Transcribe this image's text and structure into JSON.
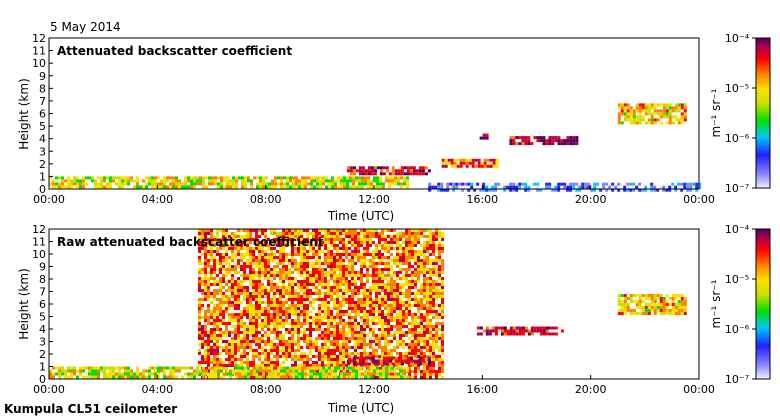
{
  "figure": {
    "date": "5 May 2014",
    "footer": "Kumpula CL51 ceilometer"
  },
  "colorbar": {
    "unit": "m⁻¹ sr⁻¹",
    "tick_labels": [
      "10⁻⁴",
      "10⁻⁵",
      "10⁻⁶",
      "10⁻⁷"
    ],
    "colors": [
      "#f0f0ff",
      "#8080ff",
      "#2020ff",
      "#00c8ff",
      "#00e000",
      "#c8e000",
      "#ffe000",
      "#ff8000",
      "#ff0000",
      "#b00050",
      "#500060"
    ]
  },
  "chart_data": [
    {
      "type": "heatmap",
      "title": "Attenuated backscatter coefficient",
      "xlabel": "Time (UTC)",
      "ylabel": "Height (km)",
      "x_ticks": [
        "00:00",
        "04:00",
        "08:00",
        "12:00",
        "16:00",
        "20:00",
        "00:00"
      ],
      "y_ticks": [
        0,
        1,
        2,
        3,
        4,
        5,
        6,
        7,
        8,
        9,
        10,
        11,
        12
      ],
      "xlim_hours": [
        0,
        24
      ],
      "ylim_km": [
        0,
        12
      ],
      "features": [
        {
          "name": "boundary-layer",
          "t0": 0,
          "t1": 13.2,
          "h0": 0.1,
          "h1": 1.0,
          "level": 0.55
        },
        {
          "name": "rising-cloud-layer",
          "t0": 11.0,
          "t1": 14.0,
          "h0": 1.3,
          "h1": 1.8,
          "level": 0.85
        },
        {
          "name": "cloud-layer-15h",
          "t0": 14.5,
          "t1": 16.5,
          "h0": 1.8,
          "h1": 2.4,
          "level": 0.75
        },
        {
          "name": "cloud-layer-17h",
          "t0": 17.0,
          "t1": 19.5,
          "h0": 3.7,
          "h1": 4.2,
          "level": 0.9
        },
        {
          "name": "cloud-layer-15h-upper",
          "t0": 15.9,
          "t1": 16.2,
          "h0": 4.1,
          "h1": 4.4,
          "level": 0.95
        },
        {
          "name": "high-cloud-21h",
          "t0": 21.0,
          "t1": 23.5,
          "h0": 5.3,
          "h1": 6.8,
          "level": 0.6
        },
        {
          "name": "night-noise-layer",
          "t0": 14.0,
          "t1": 24.0,
          "h0": 0.0,
          "h1": 0.5,
          "level": 0.15
        }
      ]
    },
    {
      "type": "heatmap",
      "title": "Raw attenuated backscatter coefficient",
      "xlabel": "Time (UTC)",
      "ylabel": "Height (km)",
      "x_ticks": [
        "00:00",
        "04:00",
        "08:00",
        "12:00",
        "16:00",
        "20:00",
        "00:00"
      ],
      "y_ticks": [
        0,
        1,
        2,
        3,
        4,
        5,
        6,
        7,
        8,
        9,
        10,
        11,
        12
      ],
      "xlim_hours": [
        0,
        24
      ],
      "ylim_km": [
        0,
        12
      ],
      "features": [
        {
          "name": "daytime-noise",
          "t0": 5.5,
          "t1": 14.5,
          "h0": 0.0,
          "h1": 12.0,
          "level": 0.7
        },
        {
          "name": "boundary-layer",
          "t0": 0,
          "t1": 13.2,
          "h0": 0.1,
          "h1": 1.0,
          "level": 0.55
        },
        {
          "name": "rising-cloud-layer",
          "t0": 11.0,
          "t1": 14.0,
          "h0": 1.3,
          "h1": 1.8,
          "level": 0.85
        },
        {
          "name": "cloud-layer-16h",
          "t0": 15.8,
          "t1": 19.0,
          "h0": 3.6,
          "h1": 4.2,
          "level": 0.85
        },
        {
          "name": "high-cloud-21h",
          "t0": 21.0,
          "t1": 23.5,
          "h0": 5.3,
          "h1": 6.8,
          "level": 0.6
        }
      ]
    }
  ]
}
